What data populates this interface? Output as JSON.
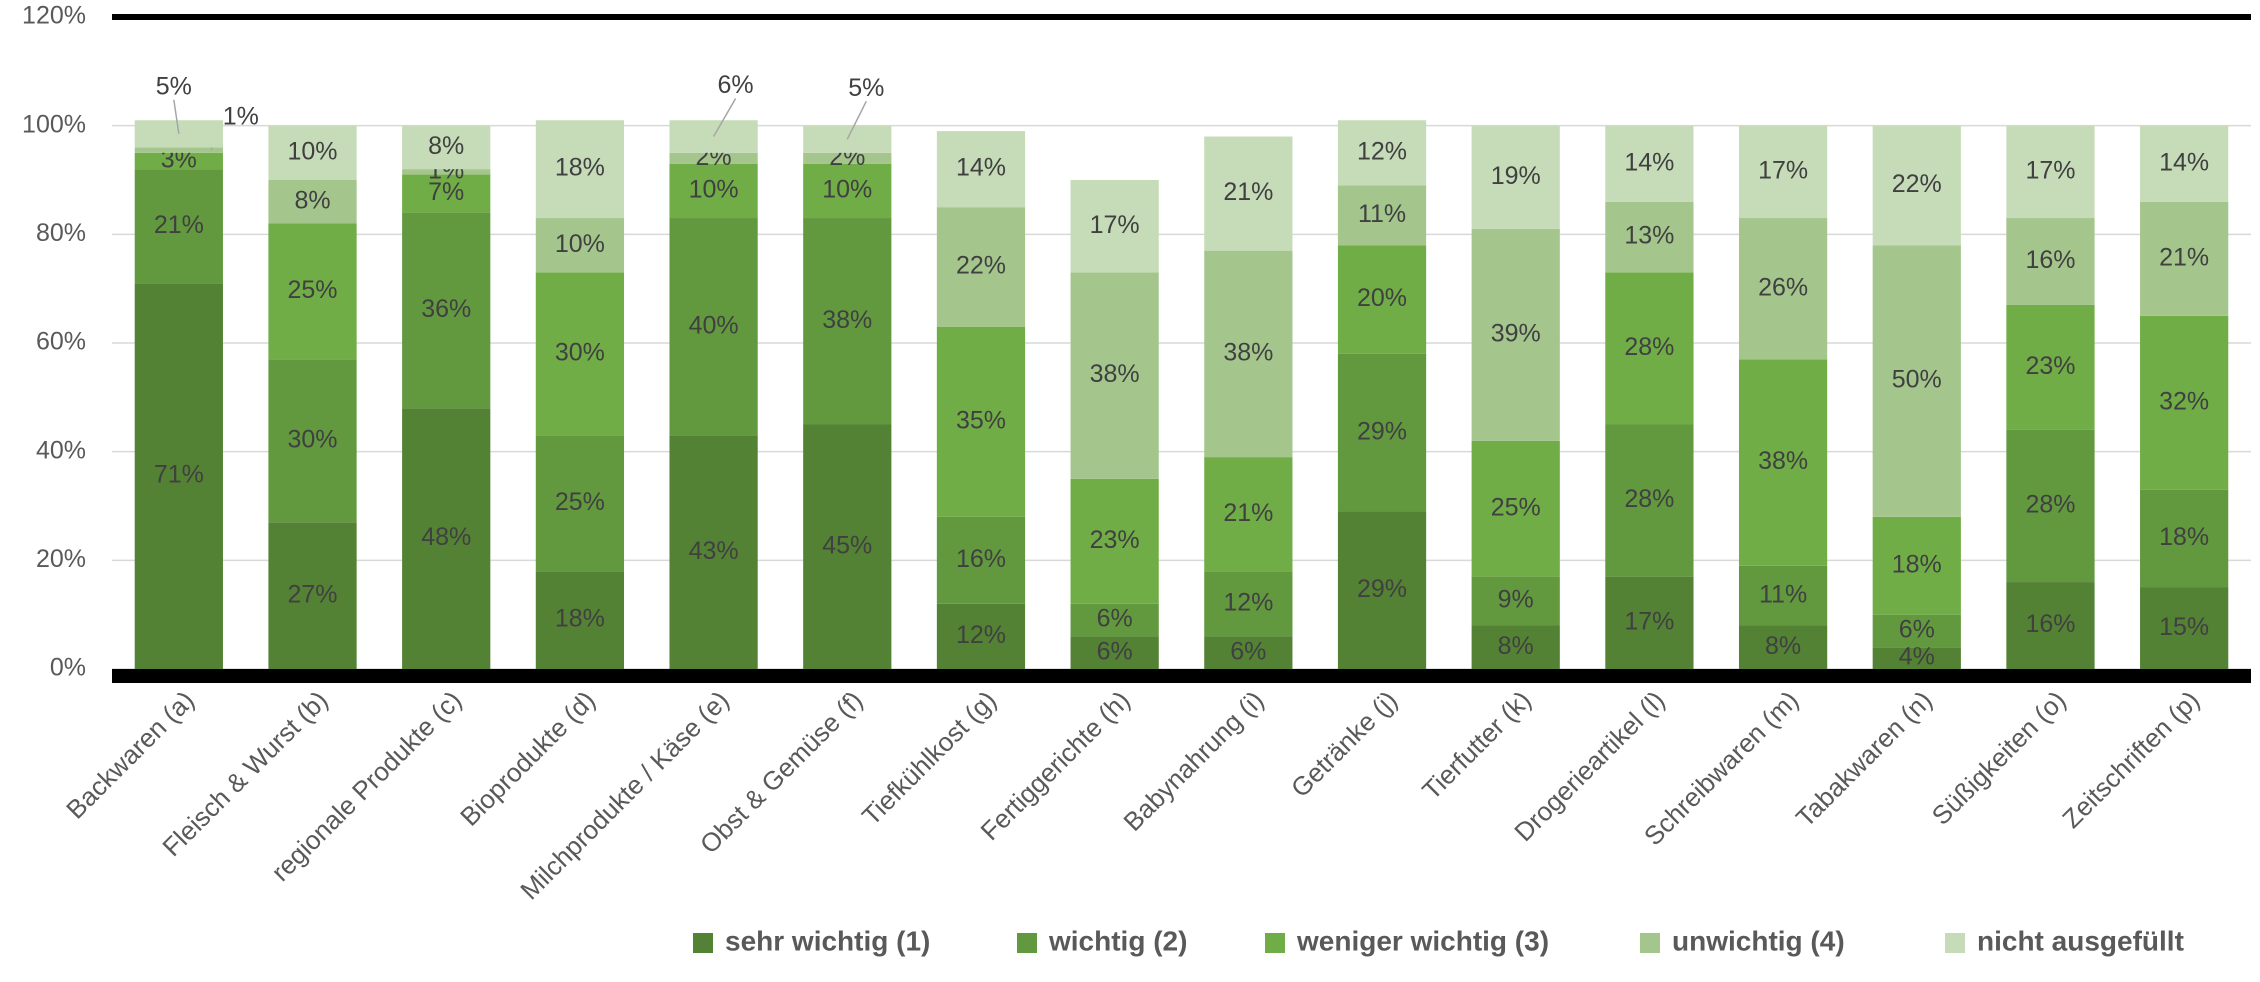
{
  "chart_data": {
    "type": "stacked_bar",
    "categories": [
      "Backwaren (a)",
      "Fleisch & Wurst (b)",
      "regionale Produkte (c)",
      "Bioprodukte (d)",
      "Milchprodukte / Käse (e)",
      "Obst & Gemüse (f)",
      "Tiefkühlkost (g)",
      "Fertiggerichte (h)",
      "Babynahrung (i)",
      "Getränke (j)",
      "Tierfutter (k)",
      "Drogerieartikel (l)",
      "Schreibwaren (m)",
      "Tabakwaren (n)",
      "Süßigkeiten (o)",
      "Zeitschriften (p)"
    ],
    "series": [
      {
        "name": "sehr wichtig (1)",
        "color": "#548235",
        "values": [
          71,
          27,
          48,
          18,
          43,
          45,
          12,
          6,
          6,
          29,
          8,
          17,
          8,
          4,
          16,
          15
        ],
        "value_labels": [
          "71%",
          "27%",
          "48%",
          "18%",
          "43%",
          "45%",
          "12%",
          "6%",
          "6%",
          "29%",
          "8%",
          "17%",
          "8%",
          "4%",
          "16%",
          "15%"
        ]
      },
      {
        "name": "wichtig (2)",
        "color": "#62993f",
        "values": [
          21,
          30,
          36,
          25,
          40,
          38,
          16,
          6,
          12,
          29,
          9,
          28,
          11,
          6,
          28,
          18
        ],
        "value_labels": [
          "21%",
          "30%",
          "36%",
          "25%",
          "40%",
          "38%",
          "16%",
          "6%",
          "12%",
          "29%",
          "9%",
          "28%",
          "11%",
          "6%",
          "28%",
          "18%"
        ]
      },
      {
        "name": "weniger wichtig (3)",
        "color": "#70ad47",
        "values": [
          3,
          25,
          7,
          30,
          10,
          10,
          35,
          23,
          21,
          20,
          25,
          28,
          38,
          18,
          23,
          32
        ],
        "value_labels": [
          "3%",
          "25%",
          "7%",
          "30%",
          "10%",
          "10%",
          "35%",
          "23%",
          "21%",
          "20%",
          "25%",
          "28%",
          "38%",
          "18%",
          "23%",
          "32%"
        ]
      },
      {
        "name": "unwichtig (4)",
        "color": "#a4c68d",
        "values": [
          1,
          8,
          1,
          10,
          2,
          2,
          22,
          38,
          38,
          11,
          39,
          13,
          26,
          50,
          16,
          21
        ],
        "value_labels": [
          "1%",
          "8%",
          "1%",
          "10%",
          "2%",
          "2%",
          "22%",
          "38%",
          "38%",
          "11%",
          "39%",
          "13%",
          "26%",
          "50%",
          "16%",
          "21%"
        ]
      },
      {
        "name": "nicht ausgefüllt",
        "color": "#c6dcb9",
        "values": [
          5,
          10,
          8,
          18,
          6,
          5,
          14,
          17,
          21,
          12,
          19,
          14,
          17,
          22,
          17,
          14
        ],
        "value_labels": [
          "5%",
          "10%",
          "8%",
          "18%",
          "6%",
          "5%",
          "14%",
          "17%",
          "21%",
          "12%",
          "19%",
          "14%",
          "17%",
          "22%",
          "17%",
          "14%"
        ]
      }
    ],
    "ylim": [
      0,
      120
    ],
    "yticks": [
      {
        "value": 0,
        "label": "0%"
      },
      {
        "value": 20,
        "label": "20%"
      },
      {
        "value": 40,
        "label": "40%"
      },
      {
        "value": 60,
        "label": "60%"
      },
      {
        "value": 80,
        "label": "80%"
      },
      {
        "value": 100,
        "label": "100%"
      },
      {
        "value": 120,
        "label": "120%"
      }
    ],
    "grid": true,
    "legend": "bottom"
  }
}
